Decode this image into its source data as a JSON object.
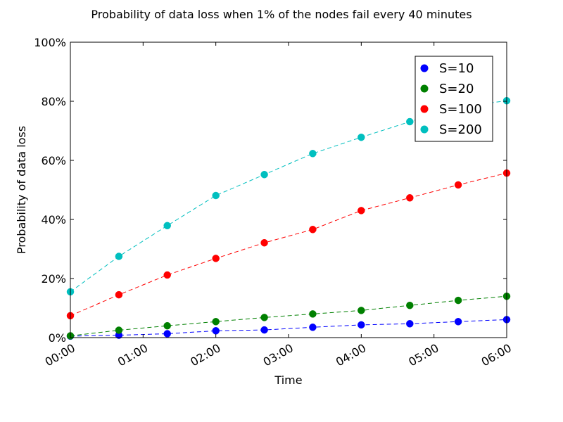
{
  "chart_data": {
    "type": "line",
    "title": "Probability of data loss when 1% of the nodes fail every 40 minutes",
    "xlabel": "Time",
    "ylabel": "Probability of data loss",
    "x_unit": "hours",
    "xlim": [
      0,
      6
    ],
    "ylim": [
      0,
      100
    ],
    "x_ticks": [
      {
        "value": 0,
        "label": "00:00"
      },
      {
        "value": 1,
        "label": "01:00"
      },
      {
        "value": 2,
        "label": "02:00"
      },
      {
        "value": 3,
        "label": "03:00"
      },
      {
        "value": 4,
        "label": "04:00"
      },
      {
        "value": 5,
        "label": "05:00"
      },
      {
        "value": 6,
        "label": "06:00"
      }
    ],
    "y_ticks": [
      {
        "value": 0,
        "label": "0%"
      },
      {
        "value": 20,
        "label": "20%"
      },
      {
        "value": 40,
        "label": "40%"
      },
      {
        "value": 60,
        "label": "60%"
      },
      {
        "value": 80,
        "label": "80%"
      },
      {
        "value": 100,
        "label": "100%"
      }
    ],
    "x": [
      0,
      0.667,
      1.333,
      2.0,
      2.667,
      3.333,
      4.0,
      4.667,
      5.333,
      6.0
    ],
    "grid": false,
    "legend_position": "top-right",
    "series": [
      {
        "name": "S=10",
        "color": "#0000ff",
        "values": [
          0.5,
          0.8,
          1.3,
          2.3,
          2.6,
          3.5,
          4.3,
          4.7,
          5.4,
          6.1
        ]
      },
      {
        "name": "S=20",
        "color": "#008000",
        "values": [
          0.6,
          2.5,
          4.0,
          5.4,
          6.8,
          8.0,
          9.2,
          10.9,
          12.6,
          14.0
        ]
      },
      {
        "name": "S=100",
        "color": "#ff0000",
        "values": [
          7.4,
          14.5,
          21.2,
          26.8,
          32.1,
          36.6,
          43.0,
          47.3,
          51.7,
          55.7
        ]
      },
      {
        "name": "S=200",
        "color": "#00bfbf",
        "values": [
          15.5,
          27.5,
          37.9,
          48.1,
          55.2,
          62.3,
          67.8,
          73.1,
          78.0,
          80.2
        ]
      }
    ]
  }
}
